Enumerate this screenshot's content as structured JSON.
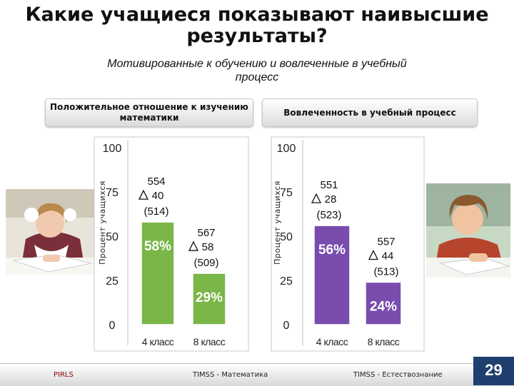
{
  "title": "Какие учащиеся показывают наивысшие результаты?",
  "subtitle": "Мотивированные к обучению и вовлеченные в учебный процесс",
  "headers": {
    "left": "Положительное отношение к изучению математики",
    "right": "Вовлеченность в учебный процесс"
  },
  "footer": {
    "pirls": "PIRLS",
    "timss_math": "TIMSS - Математика",
    "timss_science": "TIMSS - Естествознание",
    "page": "29"
  },
  "chart_data": [
    {
      "type": "bar",
      "ylabel": "Процент учащихся",
      "ylim": [
        0,
        100
      ],
      "yticks": [
        "0",
        "25",
        "50",
        "75",
        "100"
      ],
      "categories": [
        "4 класс",
        "8 класс"
      ],
      "values": [
        58,
        29
      ],
      "value_labels": [
        "58%",
        "29%"
      ],
      "annotations": [
        {
          "score": "554",
          "change": "40",
          "base": "(514)"
        },
        {
          "score": "567",
          "change": "58",
          "base": "(509)"
        }
      ],
      "color": "#7ab648"
    },
    {
      "type": "bar",
      "ylabel": "Процент учащихся",
      "ylim": [
        0,
        100
      ],
      "yticks": [
        "0",
        "25",
        "50",
        "75",
        "100"
      ],
      "categories": [
        "4 класс",
        "8 класс"
      ],
      "values": [
        56,
        24
      ],
      "value_labels": [
        "56%",
        "24%"
      ],
      "annotations": [
        {
          "score": "551",
          "change": "28",
          "base": "(523)"
        },
        {
          "score": "557",
          "change": "44",
          "base": "(513)"
        }
      ],
      "color": "#7a4cae"
    }
  ]
}
